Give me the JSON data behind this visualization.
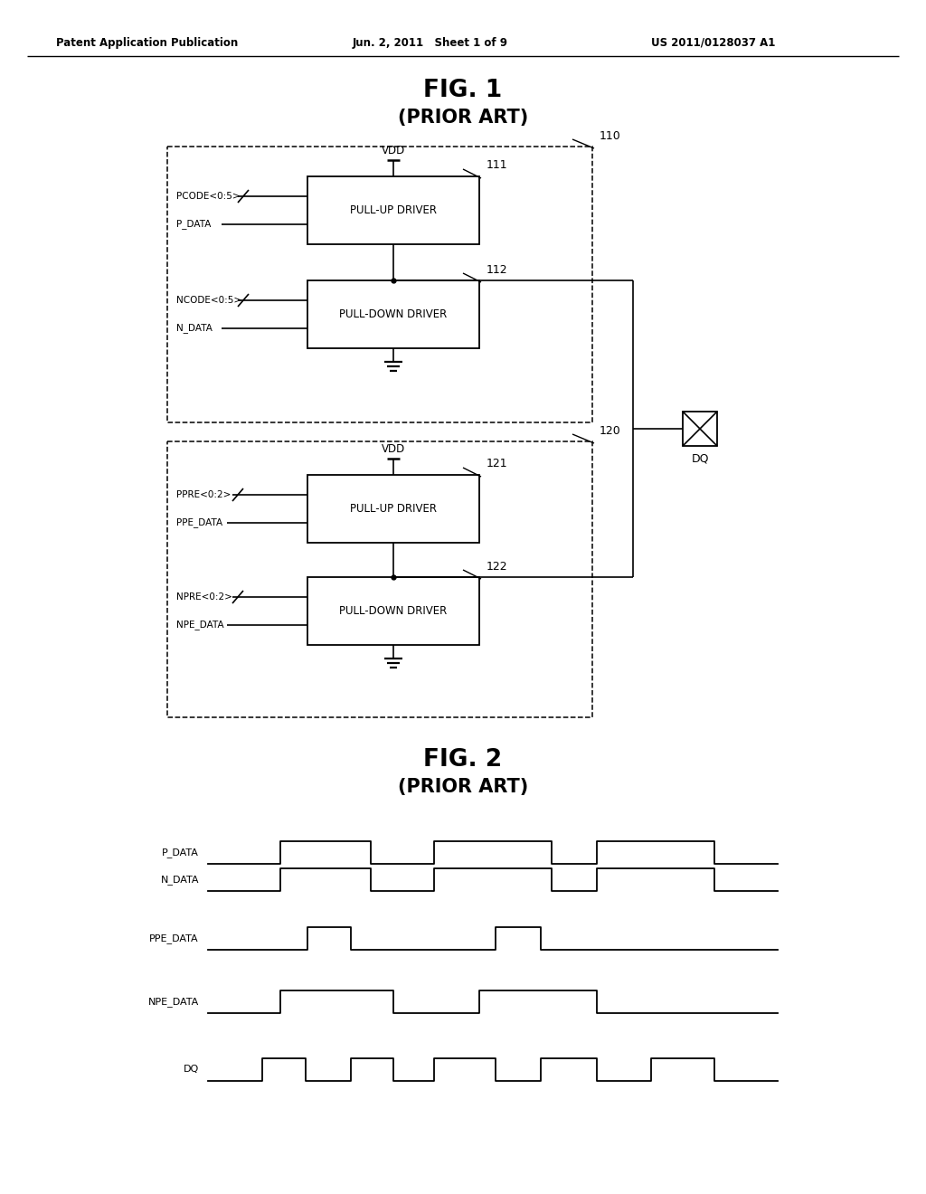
{
  "header_left": "Patent Application Publication",
  "header_center": "Jun. 2, 2011   Sheet 1 of 9",
  "header_right": "US 2011/0128037 A1",
  "fig1_title": "FIG. 1",
  "fig1_subtitle": "(PRIOR ART)",
  "fig2_title": "FIG. 2",
  "fig2_subtitle": "(PRIOR ART)",
  "background_color": "#ffffff",
  "line_color": "#000000"
}
